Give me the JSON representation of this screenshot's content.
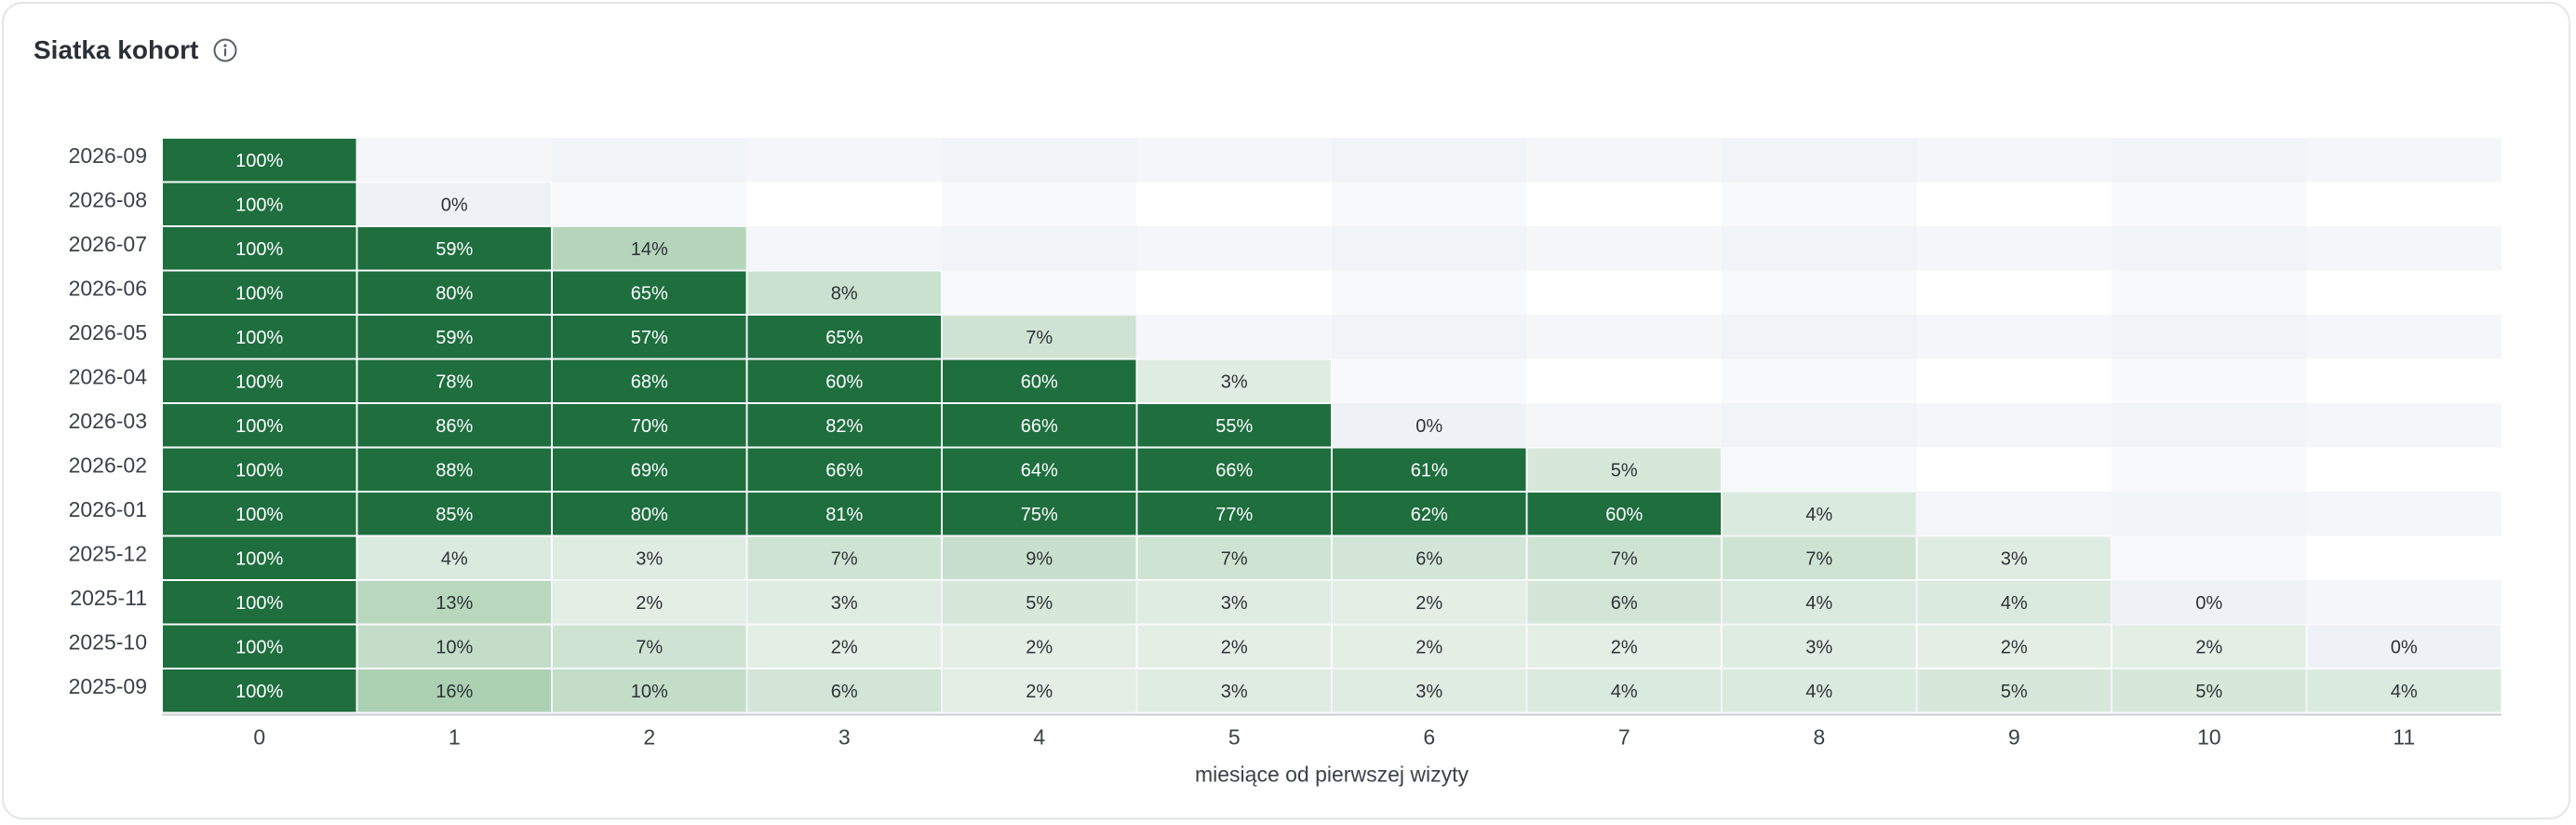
{
  "header": {
    "title": "Siatka kohort"
  },
  "icons": {
    "info": "info-icon"
  },
  "colors": {
    "strong": "#1e6e3e",
    "empty_light": "#f4f6f9",
    "empty_dark": "#eef1f5",
    "cell_text_dark": "#ffffff",
    "cell_text_light": "#2e3338",
    "axis_text": "#3c4148"
  },
  "chart_data": {
    "type": "heatmap",
    "xlabel": "miesiące od pierwszej wizyty",
    "ylabel": "",
    "x_ticks": [
      "0",
      "1",
      "2",
      "3",
      "4",
      "5",
      "6",
      "7",
      "8",
      "9",
      "10",
      "11"
    ],
    "cohorts": [
      "2026-09",
      "2026-08",
      "2026-07",
      "2026-06",
      "2026-05",
      "2026-04",
      "2026-03",
      "2026-02",
      "2026-01",
      "2025-12",
      "2025-11",
      "2025-10",
      "2025-09"
    ],
    "values": [
      [
        100
      ],
      [
        100,
        0
      ],
      [
        100,
        59,
        14
      ],
      [
        100,
        80,
        65,
        8
      ],
      [
        100,
        59,
        57,
        65,
        7
      ],
      [
        100,
        78,
        68,
        60,
        60,
        3
      ],
      [
        100,
        86,
        70,
        82,
        66,
        55,
        0
      ],
      [
        100,
        88,
        69,
        66,
        64,
        66,
        61,
        5
      ],
      [
        100,
        85,
        80,
        81,
        75,
        77,
        62,
        60,
        4
      ],
      [
        100,
        4,
        3,
        7,
        9,
        7,
        6,
        7,
        7,
        3
      ],
      [
        100,
        13,
        2,
        3,
        5,
        3,
        2,
        6,
        4,
        4,
        0
      ],
      [
        100,
        10,
        7,
        2,
        2,
        2,
        2,
        2,
        3,
        2,
        2,
        0
      ],
      [
        100,
        16,
        10,
        6,
        2,
        3,
        3,
        4,
        4,
        5,
        5,
        4
      ]
    ],
    "value_suffix": "%",
    "grid": false,
    "legend": "none"
  }
}
